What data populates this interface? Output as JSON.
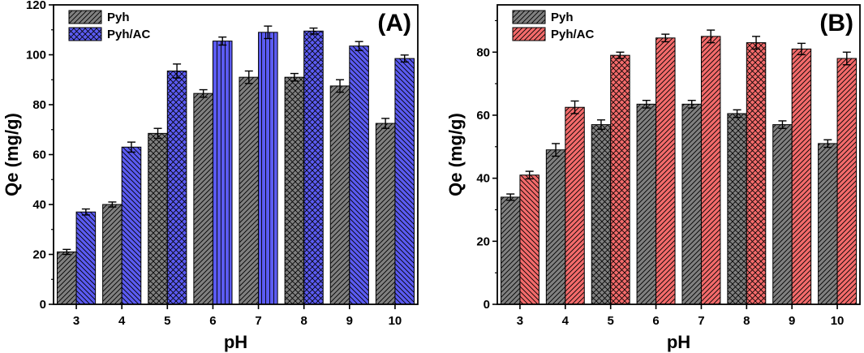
{
  "chart_data": [
    {
      "type": "bar",
      "panel_label": "(A)",
      "xlabel": "pH",
      "ylabel": "Qe (mg/g)",
      "ylim": [
        0,
        120
      ],
      "yticks": [
        0,
        20,
        40,
        60,
        80,
        100,
        120
      ],
      "categories": [
        "3",
        "4",
        "5",
        "6",
        "7",
        "8",
        "9",
        "10"
      ],
      "legend_position": "top-left",
      "series": [
        {
          "name": "Pyh",
          "color": "#808080",
          "values": [
            21,
            40,
            68.5,
            84.5,
            91,
            91,
            87.5,
            72.5
          ],
          "errors": [
            1,
            1,
            2,
            1.5,
            2.5,
            1.5,
            2.5,
            2
          ]
        },
        {
          "name": "Pyh/AC",
          "color": "#5b5bf2",
          "values": [
            37,
            63,
            93.5,
            105.5,
            109,
            109.5,
            103.5,
            98.5
          ],
          "errors": [
            1.2,
            2,
            2.8,
            1.6,
            2.5,
            1.2,
            1.8,
            1.4
          ]
        }
      ]
    },
    {
      "type": "bar",
      "panel_label": "(B)",
      "xlabel": "pH",
      "ylabel": "Qe (mg/g)",
      "ylim": [
        0,
        95
      ],
      "yticks": [
        0,
        20,
        40,
        60,
        80
      ],
      "categories": [
        "3",
        "4",
        "5",
        "6",
        "7",
        "8",
        "9",
        "10"
      ],
      "legend_position": "top-left",
      "series": [
        {
          "name": "Pyh",
          "color": "#808080",
          "values": [
            34,
            49,
            57,
            63.5,
            63.5,
            60.5,
            57,
            51
          ],
          "errors": [
            1,
            2,
            1.5,
            1.2,
            1.2,
            1.2,
            1.2,
            1.2
          ]
        },
        {
          "name": "Pyh/AC",
          "color": "#f46b6b",
          "values": [
            41,
            62.5,
            79,
            84.5,
            85,
            83,
            81,
            78
          ],
          "errors": [
            1.2,
            2,
            1,
            1.2,
            2,
            2,
            1.8,
            2
          ]
        }
      ]
    }
  ]
}
